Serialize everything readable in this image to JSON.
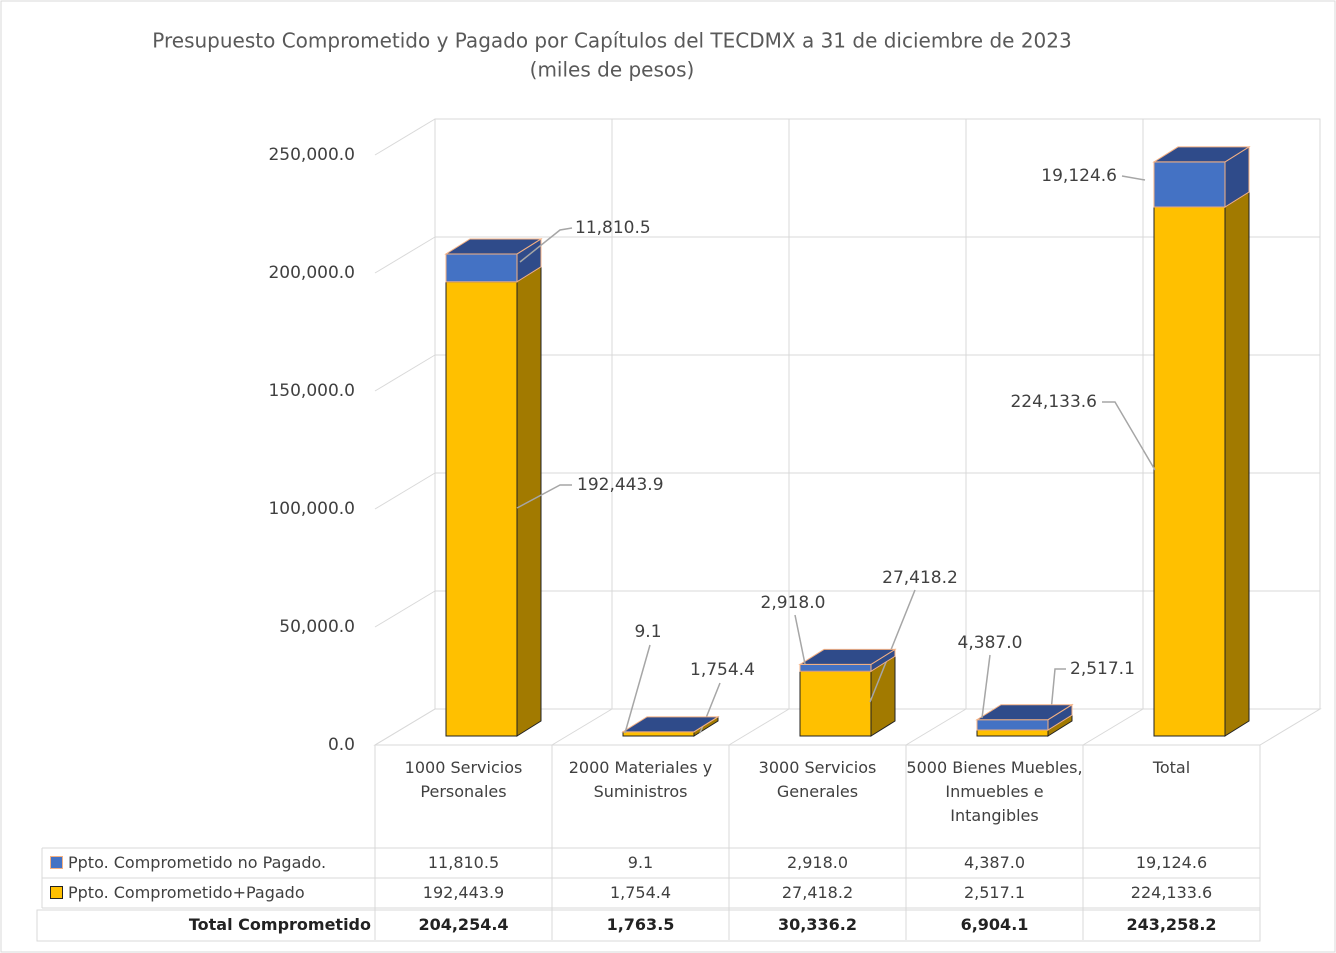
{
  "chart_data": {
    "type": "bar",
    "stacked": true,
    "title": "Presupuesto Comprometido y Pagado por Capítulos del TECDMX a 31 de diciembre de 2023",
    "subtitle": "(miles de pesos)",
    "categories": [
      "1000 Servicios Personales",
      "2000 Materiales y Suministros",
      "3000 Servicios Generales",
      "5000 Bienes Muebles, Inmuebles e Intangibles",
      "Total"
    ],
    "series": [
      {
        "name": "Ppto. Comprometido no Pagado.",
        "color": "#4472C4",
        "values": [
          11810.5,
          9.1,
          2918.0,
          4387.0,
          19124.6
        ],
        "value_labels": [
          "11,810.5",
          "9.1",
          "2,918.0",
          "4,387.0",
          "19,124.6"
        ]
      },
      {
        "name": "Ppto. Comprometido+Pagado",
        "color": "#FFC000",
        "values": [
          192443.9,
          1754.4,
          27418.2,
          2517.1,
          224133.6
        ],
        "value_labels": [
          "192,443.9",
          "1,754.4",
          "27,418.2",
          "2,517.1",
          "224,133.6"
        ]
      }
    ],
    "total_label": "Total Comprometido",
    "totals": [
      "204,254.4",
      "1,763.5",
      "30,336.2",
      "6,904.1",
      "243,258.2"
    ],
    "ylim": [
      0,
      250000
    ],
    "yticks": [
      {
        "value": 0,
        "label": "0.0"
      },
      {
        "value": 50000,
        "label": "50,000.0"
      },
      {
        "value": 100000,
        "label": "100,000.0"
      },
      {
        "value": 150000,
        "label": "150,000.0"
      },
      {
        "value": 200000,
        "label": "200,000.0"
      },
      {
        "value": 250000,
        "label": "250,000.0"
      }
    ],
    "grid": true
  }
}
